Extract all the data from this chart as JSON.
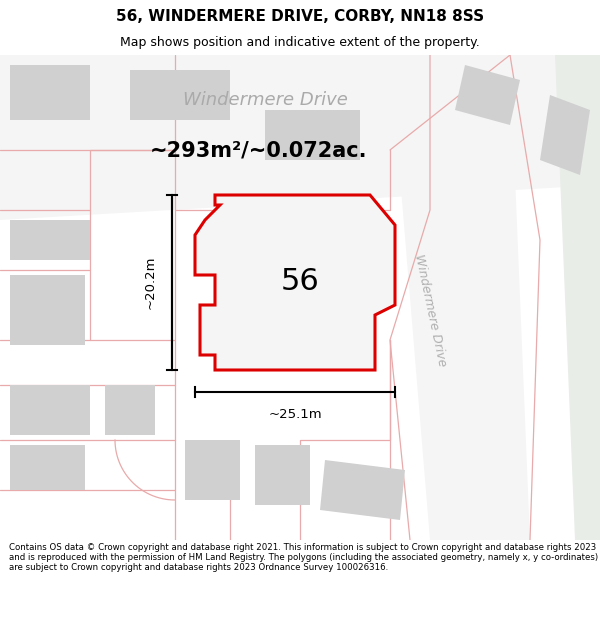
{
  "title": "56, WINDERMERE DRIVE, CORBY, NN18 8SS",
  "subtitle": "Map shows position and indicative extent of the property.",
  "footer": "Contains OS data © Crown copyright and database right 2021. This information is subject to Crown copyright and database rights 2023 and is reproduced with the permission of HM Land Registry. The polygons (including the associated geometry, namely x, y co-ordinates) are subject to Crown copyright and database rights 2023 Ordnance Survey 100026316.",
  "area_label": "~293m²/~0.072ac.",
  "number_label": "56",
  "width_label": "~25.1m",
  "height_label": "~20.2m",
  "road_label": "Windermere Drive",
  "road_label2": "Windermere Drive",
  "bg_color": "#eeeeee",
  "road_fill": "#f8f8f8",
  "building_fill": "#d0d0d0",
  "plot_fill": "#f5f5f5",
  "plot_edge": "#dd0000",
  "pink": "#e8aaaa",
  "title_bg": "#ffffff",
  "footer_bg": "#ffffff"
}
